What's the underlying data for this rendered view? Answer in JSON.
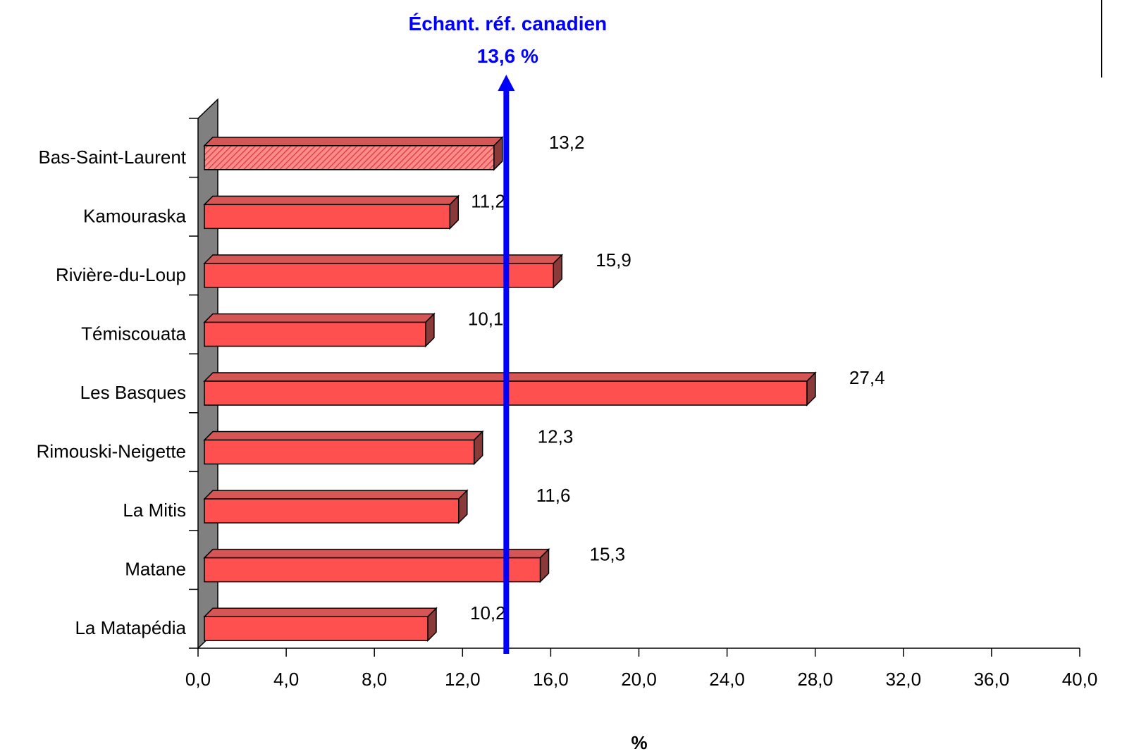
{
  "chart_data": {
    "type": "bar",
    "orientation": "horizontal",
    "categories": [
      "Bas-Saint-Laurent",
      "Kamouraska",
      "Rivière-du-Loup",
      "Témiscouata",
      "Les Basques",
      "Rimouski-Neigette",
      "La Mitis",
      "Matane",
      "La Matapédia"
    ],
    "values": [
      13.2,
      11.2,
      15.9,
      10.1,
      27.4,
      12.3,
      11.6,
      15.3,
      10.2
    ],
    "value_labels": [
      "13,2",
      "11,2",
      "15,9",
      "10,1",
      "27,4",
      "12,3",
      "11,6",
      "15,3",
      "10,2"
    ],
    "highlight_index": 0,
    "xlabel": "%",
    "xlim": [
      0,
      40
    ],
    "xticks": [
      0,
      4,
      8,
      12,
      16,
      20,
      24,
      28,
      32,
      36,
      40
    ],
    "xtick_labels": [
      "0,0",
      "4,0",
      "8,0",
      "12,0",
      "16,0",
      "20,0",
      "24,0",
      "28,0",
      "32,0",
      "36,0",
      "40,0"
    ],
    "grid": false,
    "reference_line": {
      "value": 13.6,
      "label_line1": "Échant. réf. canadien",
      "label_line2": "13,6 %",
      "color": "#0000ff"
    },
    "colors": {
      "bar": "#ff5050",
      "bar_highlight": "#ff7373",
      "bar_top": "#d65555",
      "bar_side": "#8b3a3a",
      "wall": "#808080"
    }
  }
}
